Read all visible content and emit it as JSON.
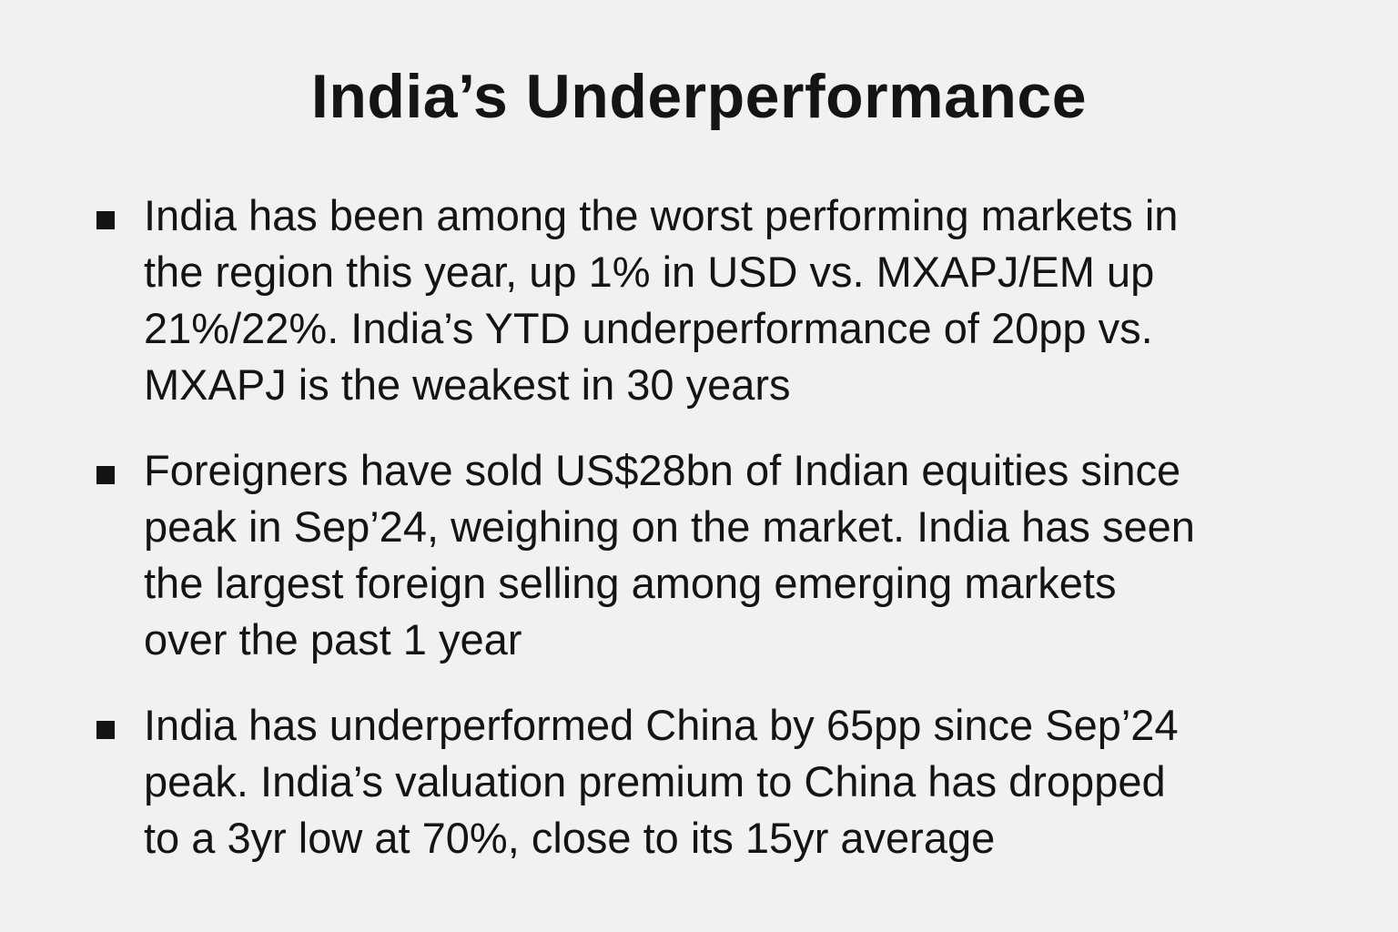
{
  "title": "India’s Underperformance",
  "bullets": [
    {
      "text": "India has been among the worst performing markets in\nthe region this year, up 1% in USD vs. MXAPJ/EM up\n21%/22%. India’s YTD underperformance of 20pp vs.\nMXAPJ is the weakest in 30 years"
    },
    {
      "text": "Foreigners have sold US$28bn of Indian equities since\npeak in Sep’24, weighing on the market. India has seen\nthe largest foreign selling among emerging markets\nover the past 1 year"
    },
    {
      "text": "India has underperformed China by 65pp since Sep’24\npeak. India’s valuation premium to China has dropped\nto a 3yr low at 70%, close to its 15yr average"
    }
  ]
}
